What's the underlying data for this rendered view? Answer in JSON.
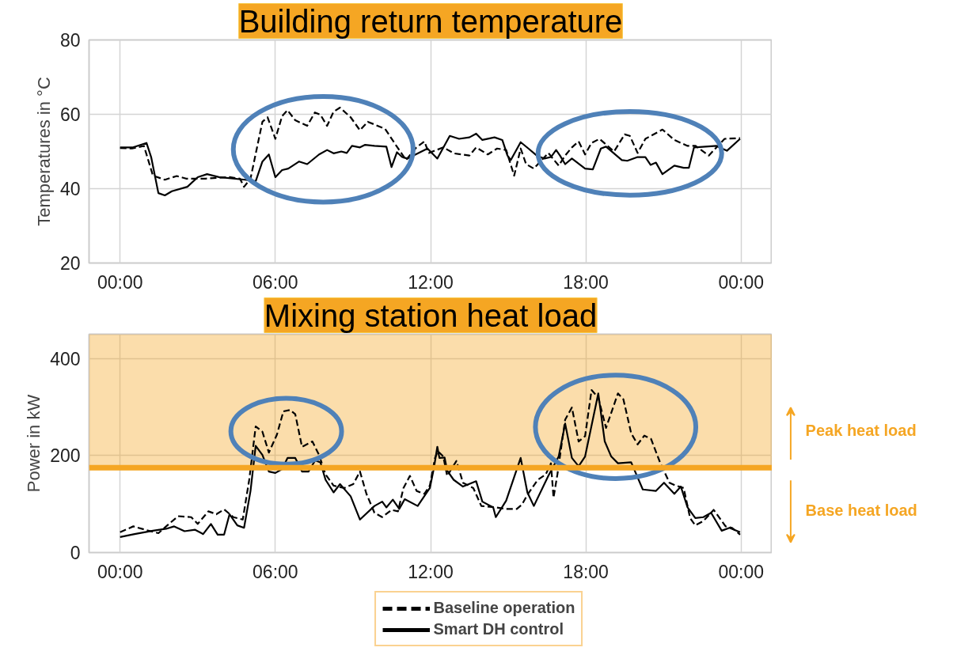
{
  "chart_data": [
    {
      "type": "line",
      "title": "Building return temperature",
      "ylabel": "Temperatures in °C",
      "xlim": [
        -1.2,
        25.2
      ],
      "ylim": [
        20,
        80
      ],
      "yticks": [
        20,
        40,
        60,
        80
      ],
      "xticks": [
        {
          "value": 0,
          "label": "00:00"
        },
        {
          "value": 6,
          "label": "06:00"
        },
        {
          "value": 12,
          "label": "12:00"
        },
        {
          "value": 18,
          "label": "18:00"
        },
        {
          "value": 24,
          "label": "00:00"
        }
      ],
      "grid": true,
      "legend": false,
      "series": [
        {
          "color": "#000000",
          "line_style": "dashed",
          "x": [
            0,
            0.46,
            0.92,
            1.27,
            1.73,
            2.19,
            2.55,
            3.31,
            4.23,
            4.63,
            4.79,
            5.04,
            5.5,
            5.7,
            6.0,
            6.26,
            6.47,
            6.77,
            7.23,
            7.53,
            7.74,
            8.0,
            8.25,
            8.5,
            8.91,
            9.27,
            9.57,
            10.24,
            10.64,
            11.05,
            11.45,
            11.76,
            11.93,
            12.49,
            12.9,
            13.5,
            13.76,
            14.21,
            14.57,
            14.92,
            15.23,
            15.48,
            15.69,
            15.99,
            16.55,
            16.95,
            17.2,
            17.46,
            17.72,
            17.97,
            18.22,
            18.53,
            19.09,
            19.5,
            19.7,
            20.0,
            20.3,
            20.96,
            21.42,
            21.93,
            22.24,
            22.75,
            23.36,
            23.96
          ],
          "values": [
            50.9,
            50.8,
            51.5,
            43.5,
            42.4,
            43.4,
            42.7,
            42.7,
            43.1,
            42.7,
            40.5,
            42.7,
            58.0,
            59.2,
            53.4,
            59.5,
            61.1,
            58.4,
            56.9,
            60.5,
            59.9,
            56.9,
            60.7,
            61.8,
            59.2,
            55.7,
            58.0,
            56.1,
            51.9,
            47.7,
            51.1,
            52.7,
            49.6,
            51.1,
            49.5,
            48.9,
            51.1,
            49.2,
            50.8,
            50.4,
            43.5,
            50.8,
            46.6,
            45.4,
            49.6,
            46.2,
            48.9,
            51.1,
            52.7,
            49.2,
            52.3,
            53.4,
            50.0,
            54.6,
            54.2,
            49.6,
            53.4,
            55.9,
            53.1,
            51.5,
            51.5,
            48.9,
            53.4,
            53.6
          ]
        },
        {
          "color": "#000000",
          "line_style": "solid",
          "x": [
            0,
            0.5,
            1.02,
            1.2,
            1.48,
            1.73,
            2.0,
            2.6,
            3.0,
            3.36,
            3.82,
            4.84,
            5.24,
            5.5,
            5.75,
            6.0,
            6.26,
            6.5,
            6.92,
            7.23,
            7.69,
            8.0,
            8.25,
            8.55,
            8.76,
            8.96,
            9.27,
            9.47,
            9.83,
            10.29,
            10.49,
            10.7,
            10.9,
            11.1,
            11.88,
            12.26,
            12.74,
            13.1,
            13.5,
            13.76,
            14.0,
            14.47,
            14.77,
            14.97,
            15.1,
            15.48,
            15.78,
            16.1,
            16.4,
            16.65,
            16.85,
            17.0,
            17.2,
            17.46,
            17.97,
            18.27,
            18.58,
            18.78,
            19.39,
            19.6,
            20.0,
            20.3,
            20.5,
            20.71,
            20.96,
            21.42,
            21.78,
            21.98,
            22.18,
            23.05,
            23.45,
            23.96
          ],
          "values": [
            51.1,
            51.1,
            52.3,
            48.5,
            38.8,
            38.2,
            39.3,
            40.5,
            43.1,
            43.9,
            43.1,
            42.4,
            42.0,
            47.3,
            49.2,
            43.1,
            45.0,
            45.4,
            47.3,
            46.6,
            49.2,
            50.4,
            49.5,
            50.0,
            49.6,
            51.5,
            51.1,
            51.8,
            51.5,
            51.3,
            45.8,
            49.8,
            48.5,
            48.1,
            50.8,
            48.1,
            54.2,
            53.4,
            53.8,
            54.8,
            53.1,
            53.8,
            53.1,
            48.9,
            47.7,
            52.5,
            50.8,
            48.9,
            48.1,
            48.5,
            50.4,
            48.9,
            46.6,
            48.1,
            45.4,
            45.2,
            50.8,
            51.3,
            47.7,
            47.5,
            48.5,
            48.5,
            46.4,
            47.0,
            43.9,
            46.2,
            45.6,
            45.6,
            51.1,
            51.5,
            50.2,
            53.4
          ]
        }
      ]
    },
    {
      "type": "line",
      "title": "Mixing station heat load",
      "ylabel": "Power in kW",
      "xlim": [
        -1.2,
        25.2
      ],
      "ylim": [
        0,
        450
      ],
      "yticks": [
        0,
        200,
        400
      ],
      "xticks": [
        {
          "value": 0,
          "label": "00:00"
        },
        {
          "value": 6,
          "label": "06:00"
        },
        {
          "value": 12,
          "label": "12:00"
        },
        {
          "value": 18,
          "label": "18:00"
        },
        {
          "value": 24,
          "label": "00:00"
        }
      ],
      "grid": true,
      "legend": "bottom",
      "ref_lines": [
        {
          "axis": "y",
          "value": 175,
          "label": "Base heat load",
          "color": "#f5a623"
        }
      ],
      "bands": [
        {
          "axis": "y",
          "from": 175,
          "to": 450,
          "label": "Peak heat load",
          "color": "#f5a623"
        }
      ],
      "series": [
        {
          "name": "Baseline operation",
          "color": "#000000",
          "line_style": "dashed",
          "x": [
            0,
            0.51,
            0.97,
            1.48,
            1.78,
            2.24,
            2.75,
            3.0,
            3.41,
            3.72,
            4.02,
            4.38,
            4.74,
            4.99,
            5.24,
            5.5,
            5.75,
            6.06,
            6.31,
            6.57,
            6.77,
            7.03,
            7.43,
            7.69,
            7.94,
            8.25,
            8.66,
            9.01,
            9.27,
            9.52,
            9.83,
            10.13,
            10.49,
            10.74,
            10.95,
            11.2,
            11.46,
            11.76,
            11.97,
            12.17,
            12.28,
            12.49,
            12.64,
            13.0,
            13.25,
            13.65,
            13.96,
            14.52,
            14.92,
            15.33,
            15.53,
            15.74,
            16.14,
            16.45,
            16.65,
            16.75,
            16.9,
            17.2,
            17.46,
            17.72,
            17.97,
            18.22,
            18.48,
            18.78,
            19.24,
            19.45,
            19.75,
            20.0,
            20.26,
            20.52,
            20.88,
            21.23,
            21.48,
            21.78,
            22.03,
            22.23,
            22.54,
            22.94,
            23.4,
            23.65,
            23.96
          ],
          "values": [
            42,
            54,
            47,
            40,
            54,
            75,
            73,
            59,
            85,
            79,
            89,
            73,
            68,
            150,
            260,
            249,
            206,
            243,
            291,
            294,
            285,
            218,
            229,
            201,
            161,
            138,
            133,
            141,
            167,
            121,
            82,
            73,
            88,
            85,
            133,
            158,
            127,
            121,
            138,
            195,
            209,
            198,
            158,
            189,
            144,
            133,
            96,
            93,
            90,
            90,
            99,
            119,
            150,
            161,
            184,
            113,
            161,
            274,
            299,
            229,
            240,
            335,
            319,
            257,
            328,
            316,
            246,
            223,
            241,
            234,
            184,
            144,
            138,
            133,
            71,
            56,
            65,
            88,
            54,
            51,
            37
          ]
        },
        {
          "name": "Smart DH control",
          "color": "#000000",
          "line_style": "solid",
          "x": [
            0,
            0.56,
            1.27,
            1.78,
            2.09,
            2.49,
            2.9,
            3.21,
            3.51,
            3.77,
            4.02,
            4.23,
            4.53,
            4.79,
            5.04,
            5.24,
            5.5,
            5.75,
            6.0,
            6.26,
            6.47,
            6.77,
            7.03,
            7.28,
            7.54,
            7.74,
            7.94,
            8.25,
            8.5,
            8.91,
            9.27,
            9.83,
            10.13,
            10.29,
            10.54,
            10.79,
            11.0,
            11.5,
            11.97,
            12.12,
            12.26,
            12.34,
            12.54,
            12.64,
            12.89,
            13.25,
            13.76,
            14.0,
            14.42,
            14.52,
            14.92,
            15.48,
            15.74,
            15.99,
            16.55,
            16.95,
            17.2,
            17.46,
            17.72,
            17.97,
            18.48,
            18.73,
            18.98,
            19.24,
            19.75,
            20.2,
            20.71,
            21.02,
            21.42,
            21.67,
            21.93,
            22.23,
            22.54,
            22.84,
            23.25,
            23.55,
            23.96
          ],
          "values": [
            32,
            38,
            45,
            49,
            54,
            44,
            47,
            38,
            59,
            37,
            37,
            79,
            56,
            51,
            127,
            220,
            201,
            167,
            164,
            172,
            195,
            195,
            167,
            167,
            190,
            186,
            150,
            124,
            141,
            116,
            68,
            96,
            105,
            93,
            109,
            90,
            110,
            96,
            133,
            172,
            218,
            195,
            196,
            169,
            150,
            136,
            147,
            105,
            93,
            73,
            107,
            195,
            124,
            96,
            158,
            198,
            266,
            195,
            178,
            198,
            328,
            229,
            198,
            184,
            186,
            130,
            127,
            144,
            121,
            136,
            93,
            71,
            73,
            82,
            45,
            51,
            42
          ]
        }
      ]
    }
  ]
}
